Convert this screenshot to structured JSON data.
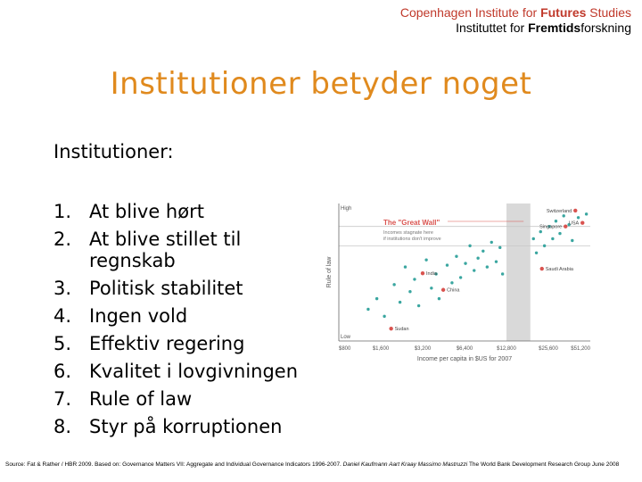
{
  "header": {
    "line1_pre": "Copenhagen Institute for ",
    "line1_bold": "Futures",
    "line1_post": " Studies",
    "line2_pre": "Instituttet for ",
    "line2_bold": "Fremtids",
    "line2_post": "forskning"
  },
  "slide": {
    "title": "Institutioner betyder noget",
    "subtitle": "Institutioner:",
    "points": [
      {
        "num": "1.",
        "text": "At blive hørt"
      },
      {
        "num": "2.",
        "text": "At blive stillet til regnskab"
      },
      {
        "num": "3.",
        "text": "Politisk stabilitet"
      },
      {
        "num": "4.",
        "text": "Ingen vold"
      },
      {
        "num": "5.",
        "text": "Effektiv regering"
      },
      {
        "num": "6.",
        "text": "Kvalitet i lovgivningen"
      },
      {
        "num": "7.",
        "text": "Rule of law"
      },
      {
        "num": "8.",
        "text": "Styr på korruptionen"
      }
    ]
  },
  "chart_data": {
    "type": "scatter",
    "title": "The \"Great Wall\"",
    "annotation": "Incomes stagnate here if institutions don't improve",
    "xlabel": "Income per capita in $US for 2007",
    "ylabel": "Rule of law",
    "x_ticks": [
      "$800",
      "$1,600",
      "$3,200",
      "$6,400",
      "$12,800",
      "$25,600",
      "$51,200"
    ],
    "y_ticks": [
      "High",
      "Low"
    ],
    "x_scale": "log",
    "shaded_band_x": [
      12800,
      19000
    ],
    "labeled_points": [
      {
        "label": "Switzerland",
        "x": 40000,
        "y": 1.9
      },
      {
        "label": "USA",
        "x": 45000,
        "y": 1.55
      },
      {
        "label": "Singapore",
        "x": 34000,
        "y": 1.45
      },
      {
        "label": "India",
        "x": 3200,
        "y": 0.12
      },
      {
        "label": "China",
        "x": 4500,
        "y": -0.35
      },
      {
        "label": "Saudi Arabia",
        "x": 23000,
        "y": 0.25
      },
      {
        "label": "Sudan",
        "x": 1900,
        "y": -1.45
      }
    ],
    "points": [
      {
        "x": 1300,
        "y": -0.9
      },
      {
        "x": 1500,
        "y": -0.6
      },
      {
        "x": 1700,
        "y": -1.1
      },
      {
        "x": 2000,
        "y": -0.2
      },
      {
        "x": 2200,
        "y": -0.7
      },
      {
        "x": 2400,
        "y": 0.3
      },
      {
        "x": 2600,
        "y": -0.4
      },
      {
        "x": 2800,
        "y": -0.05
      },
      {
        "x": 3000,
        "y": -0.8
      },
      {
        "x": 3400,
        "y": 0.5
      },
      {
        "x": 3700,
        "y": -0.3
      },
      {
        "x": 4000,
        "y": 0.1
      },
      {
        "x": 4200,
        "y": -0.6
      },
      {
        "x": 4800,
        "y": 0.35
      },
      {
        "x": 5200,
        "y": -0.15
      },
      {
        "x": 5600,
        "y": 0.6
      },
      {
        "x": 6000,
        "y": 0.0
      },
      {
        "x": 6500,
        "y": 0.4
      },
      {
        "x": 7000,
        "y": 0.9
      },
      {
        "x": 7500,
        "y": 0.2
      },
      {
        "x": 8000,
        "y": 0.55
      },
      {
        "x": 8700,
        "y": 0.75
      },
      {
        "x": 9300,
        "y": 0.3
      },
      {
        "x": 10000,
        "y": 1.0
      },
      {
        "x": 10800,
        "y": 0.45
      },
      {
        "x": 11500,
        "y": 0.85
      },
      {
        "x": 12000,
        "y": 0.1
      },
      {
        "x": 20000,
        "y": 1.1
      },
      {
        "x": 21000,
        "y": 0.7
      },
      {
        "x": 22500,
        "y": 1.3
      },
      {
        "x": 24000,
        "y": 0.9
      },
      {
        "x": 26000,
        "y": 1.45
      },
      {
        "x": 27500,
        "y": 1.1
      },
      {
        "x": 29000,
        "y": 1.6
      },
      {
        "x": 31000,
        "y": 1.25
      },
      {
        "x": 33000,
        "y": 1.75
      },
      {
        "x": 36000,
        "y": 1.5
      },
      {
        "x": 38000,
        "y": 1.05
      },
      {
        "x": 42000,
        "y": 1.7
      },
      {
        "x": 48000,
        "y": 1.8
      }
    ],
    "ylim": [
      -1.8,
      2.1
    ],
    "xlim": [
      800,
      51200
    ]
  },
  "source": {
    "plain1": "Source: Fat & Rather / HBR 2009. Based on: Governance Matters VII: Aggregate and Individual Governance Indicators 1996-2007.",
    "italic": " Daniel Kaufmann Aart Kraay Massimo Mastruzzi",
    "plain2": " The World Bank Development Research Group June 2008"
  },
  "colors": {
    "title": "#e08a1e",
    "header_line1": "#c0392b",
    "point_red": "#d9534f",
    "point_teal": "#3aa6a0",
    "band": "#d9d9d9"
  }
}
